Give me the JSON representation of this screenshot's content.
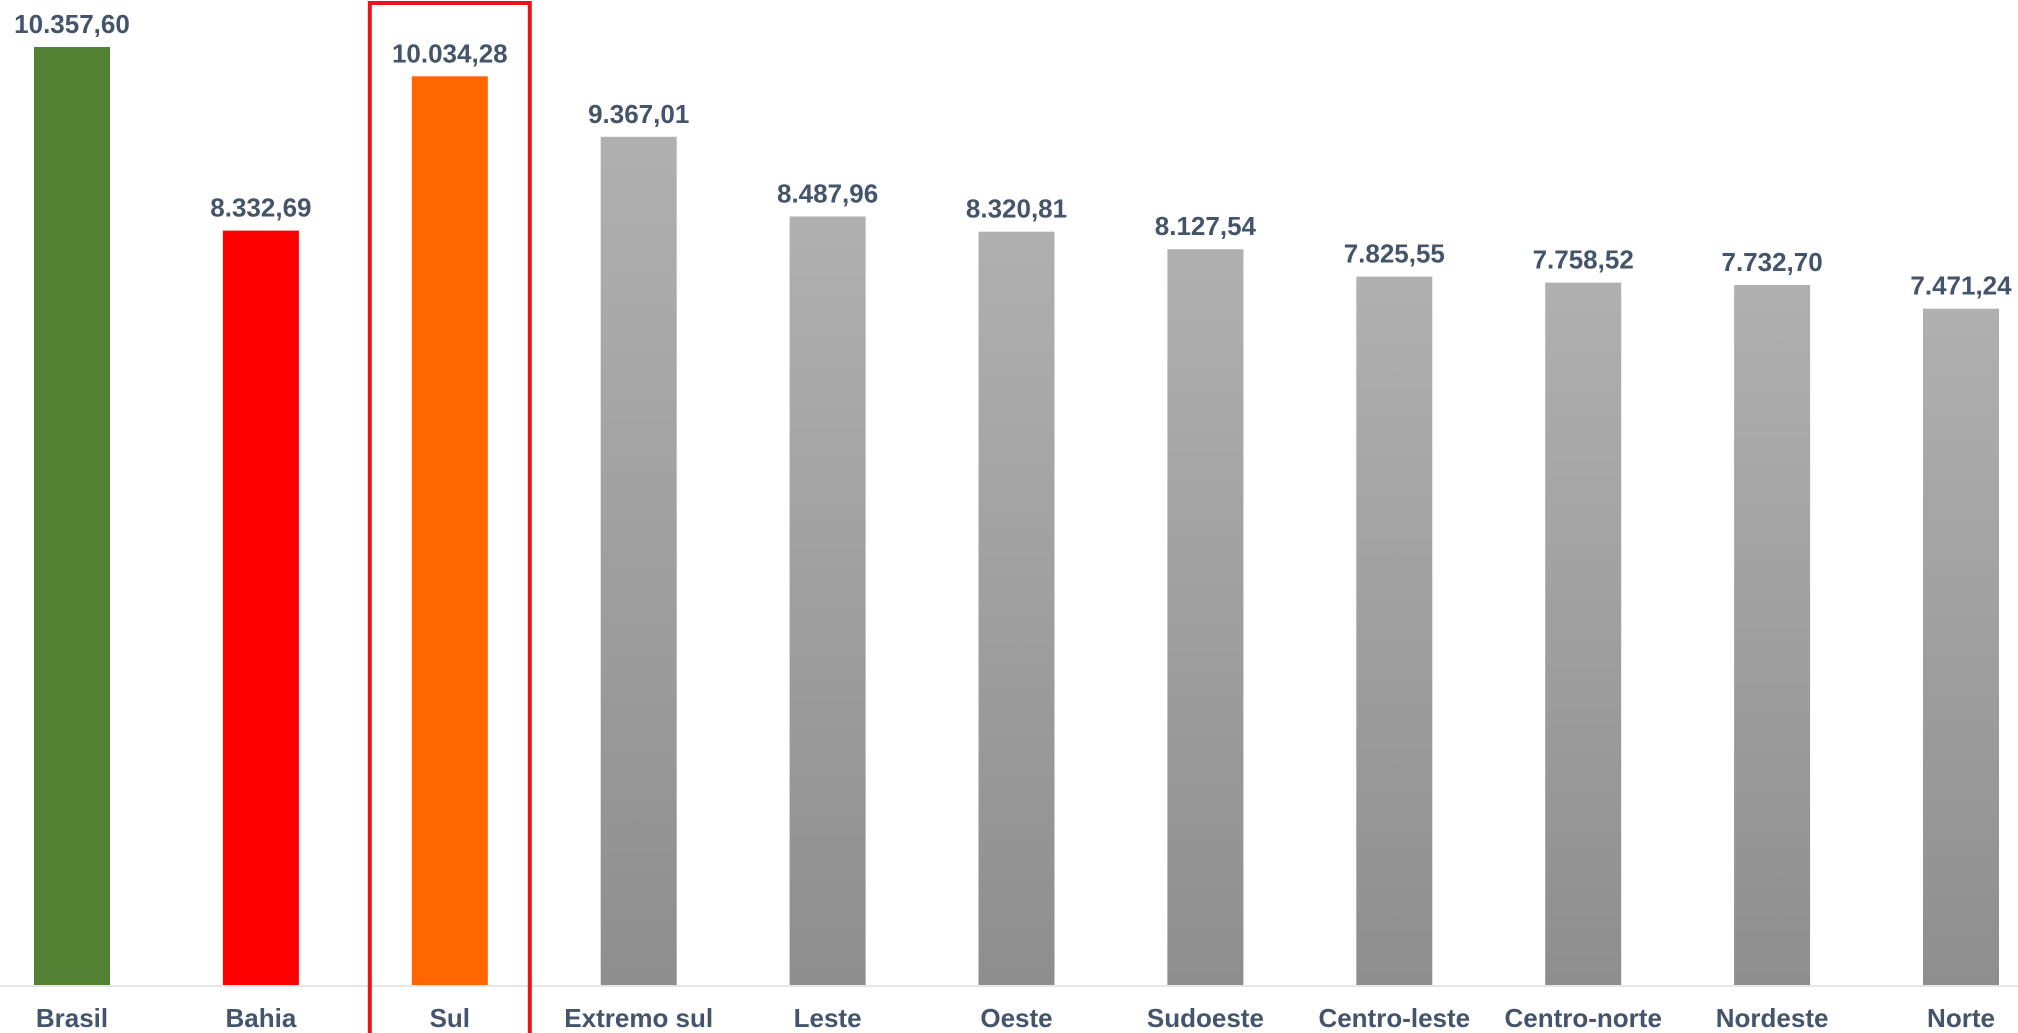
{
  "chart_data": {
    "type": "bar",
    "categories": [
      "Brasil",
      "Bahia",
      "Sul",
      "Extremo sul",
      "Leste",
      "Oeste",
      "Sudoeste",
      "Centro-leste",
      "Centro-norte",
      "Nordeste",
      "Norte"
    ],
    "values": [
      10357.6,
      8332.69,
      10034.28,
      9367.01,
      8487.96,
      8320.81,
      8127.54,
      7825.55,
      7758.52,
      7732.7,
      7471.24
    ],
    "value_labels": [
      "10.357,60",
      "8.332,69",
      "10.034,28",
      "9.367,01",
      "8.487,96",
      "8.320,81",
      "8.127,54",
      "7.825,55",
      "7.758,52",
      "7.732,70",
      "7.471,24"
    ],
    "bar_colors": [
      "#548235",
      "#ff0000",
      "#ff6600",
      "gray-gradient",
      "gray-gradient",
      "gray-gradient",
      "gray-gradient",
      "gray-gradient",
      "gray-gradient",
      "gray-gradient",
      "gray-gradient"
    ],
    "gradient_colors": [
      "#b0b0b0",
      "#8e8e8e"
    ],
    "label_color": "#44546a",
    "highlight": {
      "category": "Sul",
      "border_color": "#e8161b"
    },
    "ylim": [
      0,
      10357.6
    ],
    "grid": false,
    "title": "",
    "xlabel": "",
    "ylabel": ""
  }
}
